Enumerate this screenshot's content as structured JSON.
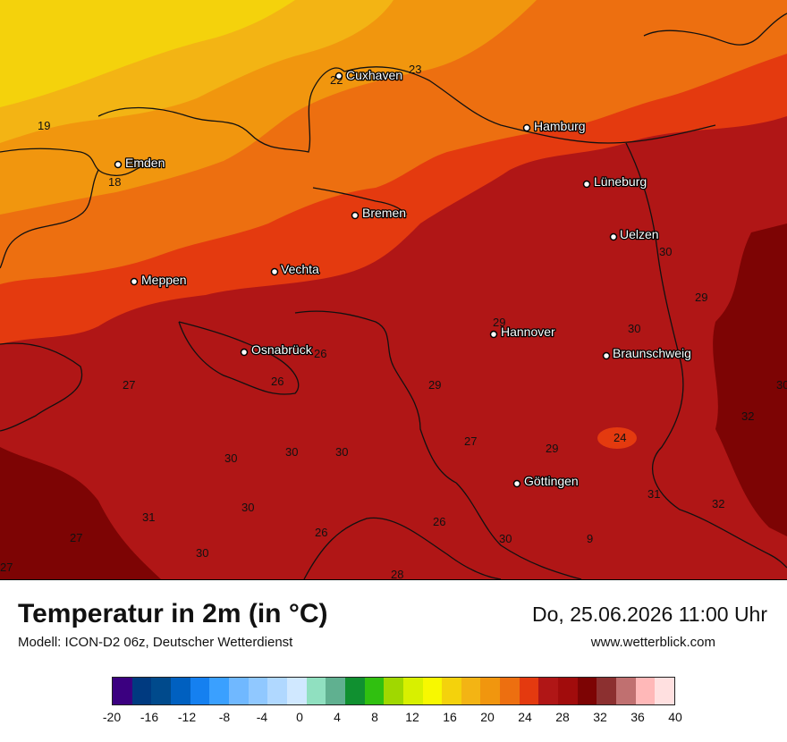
{
  "map": {
    "title": "Temperatur in 2m (in °C)",
    "model": "Modell: ICON-D2 06z, Deutscher Wetterdienst",
    "datetime": "Do, 25.06.2026 11:00 Uhr",
    "website": "www.wetterblick.com",
    "colors": {
      "t19": "#f4d20c",
      "t20": "#f3b414",
      "t22": "#f1960e",
      "t24": "#ed6f10",
      "t26": "#e43a0f",
      "t28": "#b01616",
      "t30": "#a10c0c",
      "t32": "#7d0404",
      "coast": "#111111"
    },
    "cities": [
      {
        "name": "Cuxhaven"
      },
      {
        "name": "Hamburg"
      },
      {
        "name": "Emden"
      },
      {
        "name": "Lüneburg"
      },
      {
        "name": "Bremen"
      },
      {
        "name": "Uelzen"
      },
      {
        "name": "Meppen"
      },
      {
        "name": "Vechta"
      },
      {
        "name": "Hannover"
      },
      {
        "name": "Osnabrück"
      },
      {
        "name": "Braunschweig"
      },
      {
        "name": "Göttingen"
      }
    ],
    "isolines": [
      "23",
      "22",
      "19",
      "18",
      "30",
      "29",
      "30",
      "29",
      "26",
      "30",
      "27",
      "26",
      "29",
      "27",
      "29",
      "24",
      "32",
      "30",
      "30",
      "30",
      "31",
      "30",
      "31",
      "32",
      "27",
      "26",
      "26",
      "30",
      "9",
      "27",
      "30",
      "28"
    ]
  },
  "legend": {
    "colors": [
      "#3b0080",
      "#003a80",
      "#004a8c",
      "#0060c0",
      "#1580f0",
      "#3aa0ff",
      "#70b8ff",
      "#90c8ff",
      "#b0d8ff",
      "#d0e8ff",
      "#90e0c0",
      "#60b090",
      "#109030",
      "#30c010",
      "#a0d800",
      "#d8f000",
      "#f8f800",
      "#f4d20c",
      "#f3b414",
      "#f1960e",
      "#ed6f10",
      "#e43a0f",
      "#b01616",
      "#a10c0c",
      "#7d0404",
      "#8c3030",
      "#c07070",
      "#ffb8b8",
      "#ffe0e0"
    ],
    "ticks": [
      "-20",
      "-16",
      "-12",
      "-8",
      "-4",
      "0",
      "4",
      "8",
      "12",
      "16",
      "20",
      "24",
      "28",
      "32",
      "36",
      "40"
    ]
  }
}
